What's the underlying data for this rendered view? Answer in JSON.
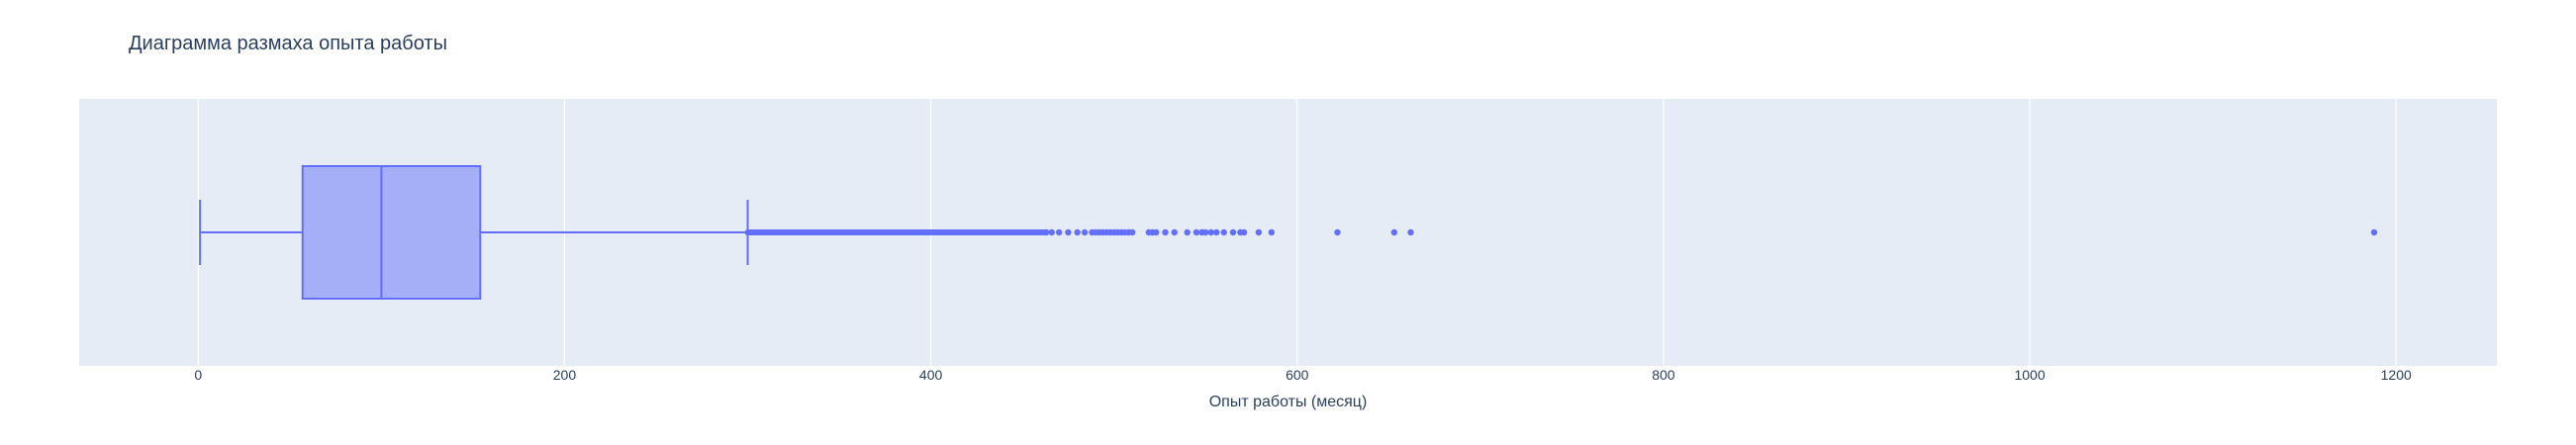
{
  "chart_data": {
    "type": "box",
    "title": "Диаграмма размаха опыта работы",
    "xlabel": "Опыт работы (месяц)",
    "ylabel": "",
    "orientation": "horizontal",
    "xlim": [
      -65,
      1255
    ],
    "xticks": [
      0,
      200,
      400,
      600,
      800,
      1000,
      1200
    ],
    "grid": true,
    "legend": "none",
    "colors": {
      "plot_bg": "#e5ecf6",
      "grid": "#ffffff",
      "box_fill": "#a5aff7",
      "box_line": "#636efa",
      "text": "#2a3f5f"
    },
    "box": {
      "lower_fence": 1,
      "q1": 57,
      "median": 100,
      "q3": 154,
      "upper_fence": 300
    },
    "outlier_dense_range": [
      300,
      462
    ],
    "outliers": [
      463,
      466,
      470,
      475,
      480,
      484,
      488,
      490,
      492,
      494,
      496,
      498,
      500,
      502,
      504,
      506,
      508,
      510,
      519,
      521,
      523,
      528,
      533,
      540,
      545,
      548,
      550,
      553,
      556,
      560,
      565,
      569,
      571,
      579,
      586,
      622,
      653,
      662,
      1188
    ]
  }
}
